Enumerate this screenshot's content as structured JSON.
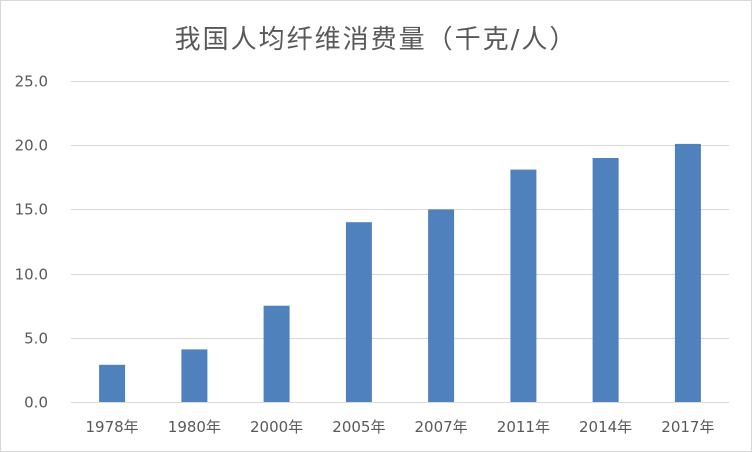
{
  "chart_data": {
    "type": "bar",
    "title": "我国人均纤维消费量（千克/人）",
    "categories": [
      "1978年",
      "1980年",
      "2000年",
      "2005年",
      "2007年",
      "2011年",
      "2014年",
      "2017年"
    ],
    "values": [
      2.9,
      4.1,
      7.5,
      14.0,
      15.0,
      18.1,
      19.0,
      20.1
    ],
    "yticks": [
      "0.0",
      "5.0",
      "10.0",
      "15.0",
      "20.0",
      "25.0"
    ],
    "ylim": [
      0,
      25
    ],
    "xlabel": "",
    "ylabel": "",
    "grid": true,
    "bar_color": "#4f81bd",
    "grid_color": "#d9d9d9"
  }
}
